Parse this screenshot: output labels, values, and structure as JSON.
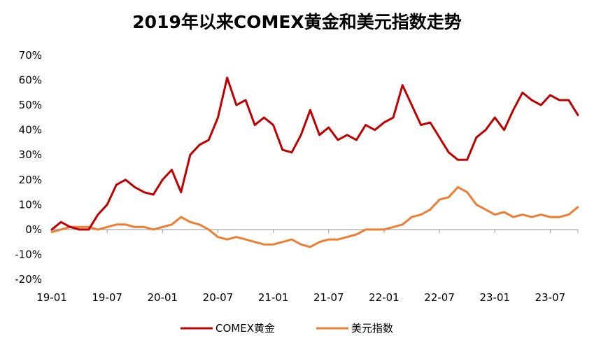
{
  "chart_data": {
    "type": "line",
    "title": "2019年以来COMEX黄金和美元指数走势",
    "y_ticks": [
      "70%",
      "60%",
      "50%",
      "40%",
      "30%",
      "20%",
      "10%",
      "0%",
      "-10%",
      "-20%"
    ],
    "ylim": [
      -20,
      70
    ],
    "x_ticks": [
      "19-01",
      "19-07",
      "20-01",
      "20-07",
      "21-01",
      "21-07",
      "22-01",
      "22-07",
      "23-01",
      "23-07"
    ],
    "xlim": [
      "2019-01",
      "2023-10"
    ],
    "y_unit": "%",
    "legend_position": "bottom",
    "series": [
      {
        "name": "COMEX黄金",
        "color": "#C00000",
        "x": [
          "2019-01",
          "2019-02",
          "2019-03",
          "2019-04",
          "2019-05",
          "2019-06",
          "2019-07",
          "2019-08",
          "2019-09",
          "2019-10",
          "2019-11",
          "2019-12",
          "2020-01",
          "2020-02",
          "2020-03",
          "2020-04",
          "2020-05",
          "2020-06",
          "2020-07",
          "2020-08",
          "2020-09",
          "2020-10",
          "2020-11",
          "2020-12",
          "2021-01",
          "2021-02",
          "2021-03",
          "2021-04",
          "2021-05",
          "2021-06",
          "2021-07",
          "2021-08",
          "2021-09",
          "2021-10",
          "2021-11",
          "2021-12",
          "2022-01",
          "2022-02",
          "2022-03",
          "2022-04",
          "2022-05",
          "2022-06",
          "2022-07",
          "2022-08",
          "2022-09",
          "2022-10",
          "2022-11",
          "2022-12",
          "2023-01",
          "2023-02",
          "2023-03",
          "2023-04",
          "2023-05",
          "2023-06",
          "2023-07",
          "2023-08",
          "2023-09",
          "2023-10"
        ],
        "values": [
          0,
          3,
          1,
          0,
          0,
          6,
          10,
          18,
          20,
          17,
          15,
          14,
          20,
          24,
          15,
          30,
          34,
          36,
          45,
          61,
          50,
          52,
          42,
          45,
          42,
          32,
          31,
          38,
          48,
          38,
          41,
          36,
          38,
          36,
          42,
          40,
          43,
          45,
          58,
          50,
          42,
          43,
          37,
          31,
          28,
          28,
          37,
          40,
          45,
          40,
          48,
          55,
          52,
          50,
          54,
          52,
          52,
          46
        ]
      },
      {
        "name": "美元指数",
        "color": "#ED7D31",
        "x": [
          "2019-01",
          "2019-02",
          "2019-03",
          "2019-04",
          "2019-05",
          "2019-06",
          "2019-07",
          "2019-08",
          "2019-09",
          "2019-10",
          "2019-11",
          "2019-12",
          "2020-01",
          "2020-02",
          "2020-03",
          "2020-04",
          "2020-05",
          "2020-06",
          "2020-07",
          "2020-08",
          "2020-09",
          "2020-10",
          "2020-11",
          "2020-12",
          "2021-01",
          "2021-02",
          "2021-03",
          "2021-04",
          "2021-05",
          "2021-06",
          "2021-07",
          "2021-08",
          "2021-09",
          "2021-10",
          "2021-11",
          "2021-12",
          "2022-01",
          "2022-02",
          "2022-03",
          "2022-04",
          "2022-05",
          "2022-06",
          "2022-07",
          "2022-08",
          "2022-09",
          "2022-10",
          "2022-11",
          "2022-12",
          "2023-01",
          "2023-02",
          "2023-03",
          "2023-04",
          "2023-05",
          "2023-06",
          "2023-07",
          "2023-08",
          "2023-09",
          "2023-10"
        ],
        "values": [
          -1,
          0,
          1,
          1,
          1,
          0,
          1,
          2,
          2,
          1,
          1,
          0,
          1,
          2,
          5,
          3,
          2,
          0,
          -3,
          -4,
          -3,
          -4,
          -5,
          -6,
          -6,
          -5,
          -4,
          -6,
          -7,
          -5,
          -4,
          -4,
          -3,
          -2,
          0,
          0,
          0,
          1,
          2,
          5,
          6,
          8,
          12,
          13,
          17,
          15,
          10,
          8,
          6,
          7,
          5,
          6,
          5,
          6,
          5,
          5,
          6,
          9
        ]
      }
    ]
  }
}
